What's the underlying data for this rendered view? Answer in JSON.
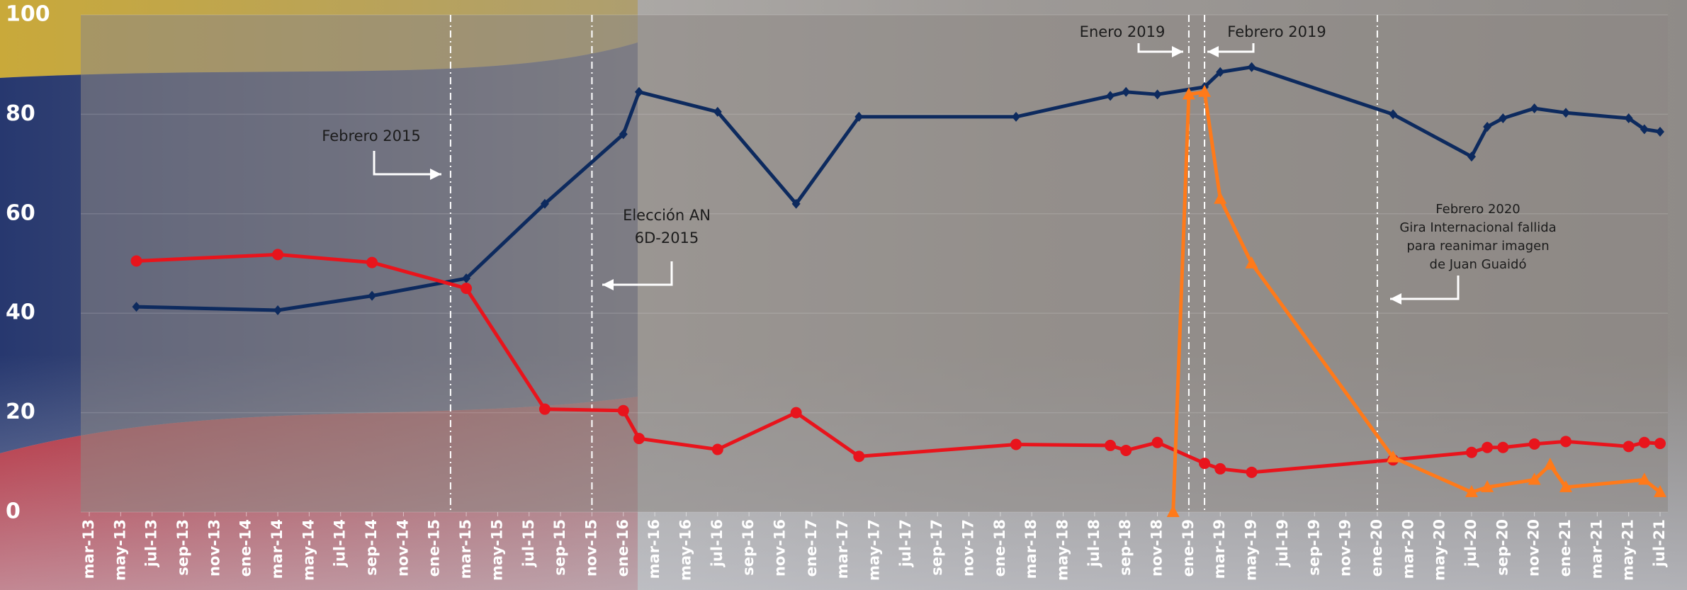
{
  "chart_data": {
    "type": "line",
    "xlim": [
      "2013-03",
      "2021-07"
    ],
    "xticks": [
      {
        "value": "2013-03",
        "label": "mar-13"
      },
      {
        "value": "2013-05",
        "label": "may-13"
      },
      {
        "value": "2013-07",
        "label": "jul-13"
      },
      {
        "value": "2013-09",
        "label": "sep-13"
      },
      {
        "value": "2013-11",
        "label": "nov-13"
      },
      {
        "value": "2014-01",
        "label": "ene-14"
      },
      {
        "value": "2014-03",
        "label": "mar-14"
      },
      {
        "value": "2014-05",
        "label": "may-14"
      },
      {
        "value": "2014-07",
        "label": "jul-14"
      },
      {
        "value": "2014-09",
        "label": "sep-14"
      },
      {
        "value": "2014-11",
        "label": "nov-14"
      },
      {
        "value": "2015-01",
        "label": "ene-15"
      },
      {
        "value": "2015-03",
        "label": "mar-15"
      },
      {
        "value": "2015-05",
        "label": "may-15"
      },
      {
        "value": "2015-07",
        "label": "jul-15"
      },
      {
        "value": "2015-09",
        "label": "sep-15"
      },
      {
        "value": "2015-11",
        "label": "nov-15"
      },
      {
        "value": "2016-01",
        "label": "ene-16"
      },
      {
        "value": "2016-03",
        "label": "mar-16"
      },
      {
        "value": "2016-05",
        "label": "may-16"
      },
      {
        "value": "2016-07",
        "label": "jul-16"
      },
      {
        "value": "2016-09",
        "label": "sep-16"
      },
      {
        "value": "2016-11",
        "label": "nov-16"
      },
      {
        "value": "2017-01",
        "label": "ene-17"
      },
      {
        "value": "2017-03",
        "label": "mar-17"
      },
      {
        "value": "2017-05",
        "label": "may-17"
      },
      {
        "value": "2017-07",
        "label": "jul-17"
      },
      {
        "value": "2017-09",
        "label": "sep-17"
      },
      {
        "value": "2017-11",
        "label": "nov-17"
      },
      {
        "value": "2018-01",
        "label": "ene-18"
      },
      {
        "value": "2018-03",
        "label": "mar-18"
      },
      {
        "value": "2018-05",
        "label": "may-18"
      },
      {
        "value": "2018-07",
        "label": "jul-18"
      },
      {
        "value": "2018-09",
        "label": "sep-18"
      },
      {
        "value": "2018-11",
        "label": "nov-18"
      },
      {
        "value": "2019-01",
        "label": "ene-19"
      },
      {
        "value": "2019-03",
        "label": "mar-19"
      },
      {
        "value": "2019-05",
        "label": "may-19"
      },
      {
        "value": "2019-07",
        "label": "jul-19"
      },
      {
        "value": "2019-09",
        "label": "sep-19"
      },
      {
        "value": "2019-11",
        "label": "nov-19"
      },
      {
        "value": "2020-01",
        "label": "ene-20"
      },
      {
        "value": "2020-03",
        "label": "mar-20"
      },
      {
        "value": "2020-05",
        "label": "may-20"
      },
      {
        "value": "2020-07",
        "label": "jul-20"
      },
      {
        "value": "2020-09",
        "label": "sep-20"
      },
      {
        "value": "2020-11",
        "label": "nov-20"
      },
      {
        "value": "2021-01",
        "label": "ene-21"
      },
      {
        "value": "2021-03",
        "label": "mar-21"
      },
      {
        "value": "2021-05",
        "label": "may-21"
      },
      {
        "value": "2021-07",
        "label": "jul-21"
      }
    ],
    "ylim": [
      0,
      100
    ],
    "yticks": [
      0,
      20,
      40,
      60,
      80,
      100
    ],
    "grid": true,
    "series": [
      {
        "color": "#0d2a5e",
        "marker": "diamond",
        "x": [
          "2013-06",
          "2014-03",
          "2014-09",
          "2015-03",
          "2015-08",
          "2016-01",
          "2016-02",
          "2016-07",
          "2016-12",
          "2017-04",
          "2018-02",
          "2018-08",
          "2018-09",
          "2018-11",
          "2019-02",
          "2019-03",
          "2019-05",
          "2020-02",
          "2020-07",
          "2020-08",
          "2020-09",
          "2020-11",
          "2021-01",
          "2021-05",
          "2021-06",
          "2021-07"
        ],
        "values": [
          41.3,
          40.6,
          43.5,
          47,
          62,
          76,
          84.5,
          80.5,
          62,
          79.5,
          79.5,
          83.7,
          84.5,
          84,
          85.5,
          88.5,
          89.5,
          80,
          71.5,
          77.5,
          79.2,
          81.2,
          80.3,
          79.2,
          77,
          76.5
        ]
      },
      {
        "color": "#e8141c",
        "marker": "circle",
        "x": [
          "2013-06",
          "2014-03",
          "2014-09",
          "2015-03",
          "2015-08",
          "2016-01",
          "2016-02",
          "2016-07",
          "2016-12",
          "2017-04",
          "2018-02",
          "2018-08",
          "2018-09",
          "2018-11",
          "2019-02",
          "2019-03",
          "2019-05",
          "2020-02",
          "2020-07",
          "2020-08",
          "2020-09",
          "2020-11",
          "2021-01",
          "2021-05",
          "2021-06",
          "2021-07"
        ],
        "values": [
          50.5,
          51.8,
          50.2,
          45,
          20.7,
          20.4,
          14.8,
          12.6,
          20,
          11.2,
          13.6,
          13.4,
          12.4,
          14,
          9.8,
          8.7,
          8,
          10.5,
          12,
          13,
          13,
          13.7,
          14.2,
          13.2,
          14,
          13.8
        ]
      },
      {
        "color": "#ff7a1a",
        "marker": "triangle",
        "x": [
          "2018-12",
          "2019-01",
          "2019-02",
          "2019-03",
          "2019-05",
          "2020-02",
          "2020-07",
          "2020-08",
          "2020-11",
          "2020-12",
          "2021-01",
          "2021-06",
          "2021-07"
        ],
        "values": [
          0,
          84,
          84.5,
          63,
          50,
          11,
          4,
          5,
          6.5,
          9.5,
          5,
          6.5,
          4
        ]
      }
    ],
    "annotations": [
      {
        "x": "2015-02",
        "lines": [
          "Febrero 2015"
        ]
      },
      {
        "x": "2015-11",
        "lines": [
          "Elección AN",
          "6D-2015"
        ]
      },
      {
        "x": "2019-01",
        "lines": [
          "Enero 2019"
        ]
      },
      {
        "x": "2019-02",
        "lines": [
          "Febrero 2019"
        ]
      },
      {
        "x": "2020-01",
        "lines": [
          "Febrero 2020",
          "Gira Internacional fallida",
          "para reanimar imagen",
          "de Juan Guaidó"
        ]
      }
    ]
  }
}
